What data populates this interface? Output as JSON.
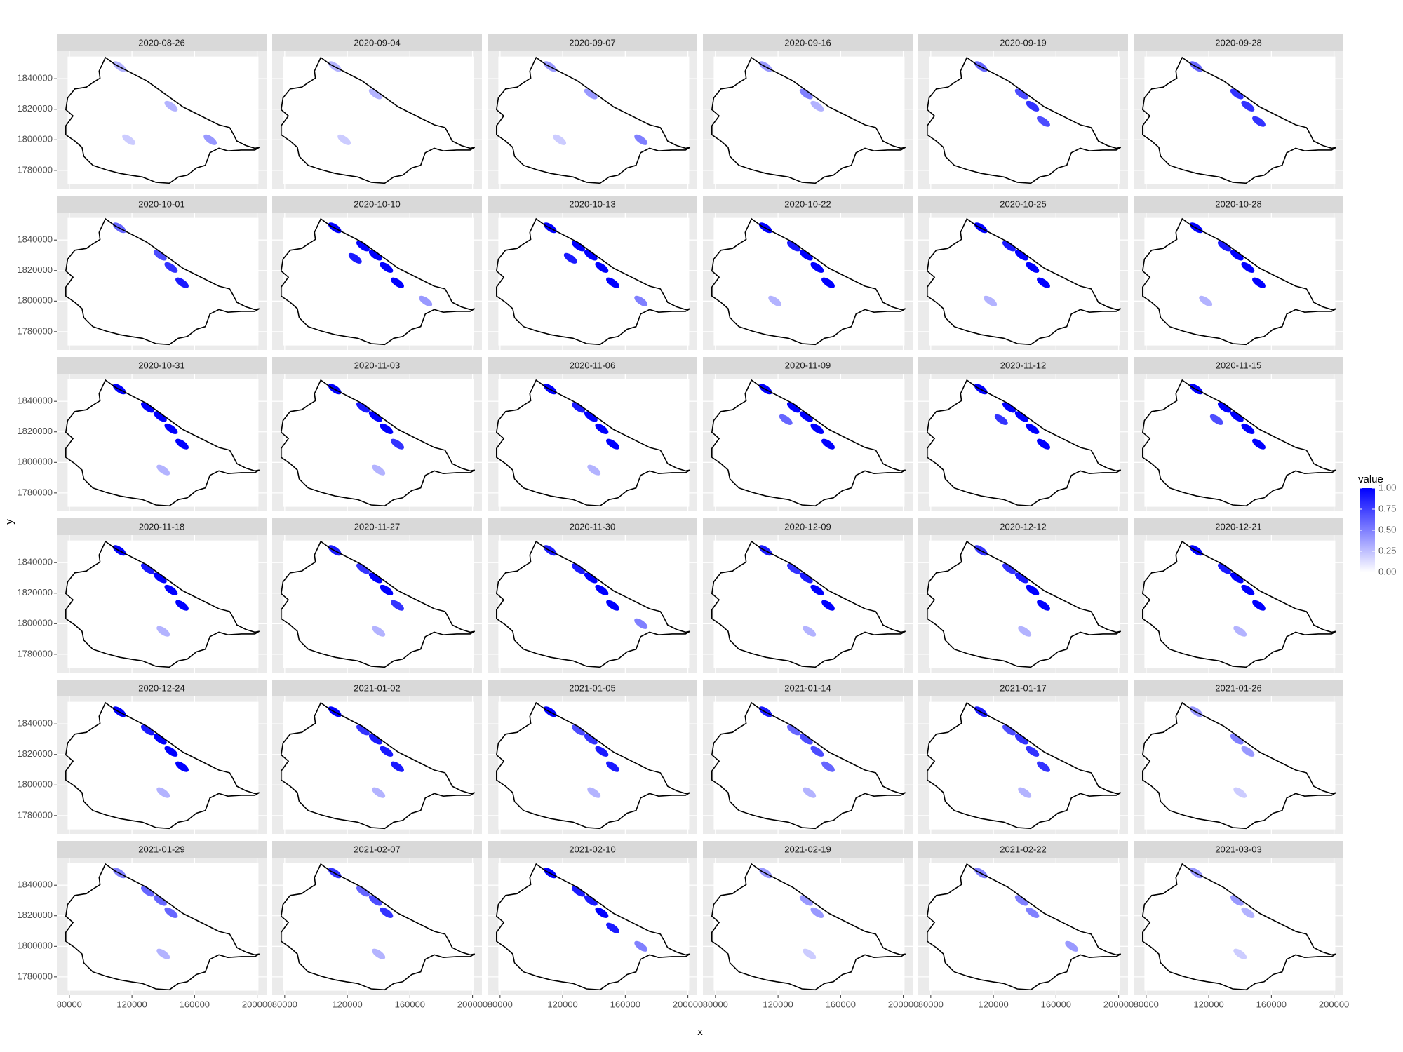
{
  "chart_data": {
    "type": "faceted-raster-map",
    "x_label": "x",
    "y_label": "y",
    "legend_title": "value",
    "xlim": [
      72000,
      206000
    ],
    "ylim": [
      1768000,
      1858000
    ],
    "xticks": [
      80000,
      120000,
      160000,
      200000
    ],
    "yticks": [
      1780000,
      1800000,
      1820000,
      1840000
    ],
    "clim": [
      0,
      1
    ],
    "cticks": [
      {
        "value": 0,
        "label": "0.00"
      },
      {
        "value": 0.25,
        "label": "0.25"
      },
      {
        "value": 0.5,
        "label": "0.50"
      },
      {
        "value": 0.75,
        "label": "0.75"
      },
      {
        "value": 1,
        "label": "1.00"
      }
    ],
    "colorscale": [
      "#ffffff",
      "#0000ff"
    ],
    "grid": true,
    "facets": [
      {
        "label": "2020-08-26",
        "x": [
          112000,
          145000,
          170000,
          118000
        ],
        "y": [
          1848000,
          1822000,
          1800000,
          1800000
        ],
        "value": [
          0.3,
          0.3,
          0.4,
          0.2
        ]
      },
      {
        "label": "2020-09-04",
        "x": [
          112000,
          138000,
          118000
        ],
        "y": [
          1848000,
          1830000,
          1800000
        ],
        "value": [
          0.3,
          0.3,
          0.2
        ]
      },
      {
        "label": "2020-09-07",
        "x": [
          112000,
          138000,
          170000,
          118000
        ],
        "y": [
          1848000,
          1830000,
          1800000,
          1800000
        ],
        "value": [
          0.4,
          0.4,
          0.5,
          0.2
        ]
      },
      {
        "label": "2020-09-16",
        "x": [
          112000,
          138000,
          145000
        ],
        "y": [
          1848000,
          1830000,
          1822000
        ],
        "value": [
          0.4,
          0.5,
          0.3
        ]
      },
      {
        "label": "2020-09-19",
        "x": [
          112000,
          138000,
          145000,
          152000
        ],
        "y": [
          1848000,
          1830000,
          1822000,
          1812000
        ],
        "value": [
          0.6,
          0.7,
          0.8,
          0.7
        ]
      },
      {
        "label": "2020-09-28",
        "x": [
          112000,
          138000,
          145000,
          152000
        ],
        "y": [
          1848000,
          1830000,
          1822000,
          1812000
        ],
        "value": [
          0.6,
          0.8,
          0.8,
          0.8
        ]
      },
      {
        "label": "2020-10-01",
        "x": [
          112000,
          138000,
          145000,
          152000
        ],
        "y": [
          1848000,
          1830000,
          1822000,
          1812000
        ],
        "value": [
          0.6,
          0.7,
          0.8,
          0.9
        ]
      },
      {
        "label": "2020-10-10",
        "x": [
          112000,
          130000,
          138000,
          145000,
          152000,
          125000,
          170000
        ],
        "y": [
          1848000,
          1836000,
          1830000,
          1822000,
          1812000,
          1828000,
          1800000
        ],
        "value": [
          1,
          1,
          1,
          1,
          1,
          0.9,
          0.4
        ]
      },
      {
        "label": "2020-10-13",
        "x": [
          112000,
          130000,
          138000,
          145000,
          152000,
          125000,
          170000
        ],
        "y": [
          1848000,
          1836000,
          1830000,
          1822000,
          1812000,
          1828000,
          1800000
        ],
        "value": [
          1,
          1,
          1,
          1,
          1,
          0.9,
          0.5
        ]
      },
      {
        "label": "2020-10-22",
        "x": [
          112000,
          130000,
          138000,
          145000,
          152000,
          118000
        ],
        "y": [
          1848000,
          1836000,
          1830000,
          1822000,
          1812000,
          1800000
        ],
        "value": [
          1,
          0.9,
          1,
          1,
          1,
          0.3
        ]
      },
      {
        "label": "2020-10-25",
        "x": [
          112000,
          130000,
          138000,
          145000,
          152000,
          118000
        ],
        "y": [
          1848000,
          1836000,
          1830000,
          1822000,
          1812000,
          1800000
        ],
        "value": [
          1,
          0.9,
          1,
          1,
          1,
          0.3
        ]
      },
      {
        "label": "2020-10-28",
        "x": [
          112000,
          130000,
          138000,
          145000,
          152000,
          118000
        ],
        "y": [
          1848000,
          1836000,
          1830000,
          1822000,
          1812000,
          1800000
        ],
        "value": [
          1,
          0.9,
          1,
          1,
          1,
          0.3
        ]
      },
      {
        "label": "2020-10-31",
        "x": [
          112000,
          130000,
          138000,
          145000,
          152000,
          140000
        ],
        "y": [
          1848000,
          1836000,
          1830000,
          1822000,
          1812000,
          1795000
        ],
        "value": [
          1,
          1,
          1,
          1,
          1,
          0.3
        ]
      },
      {
        "label": "2020-11-03",
        "x": [
          112000,
          130000,
          138000,
          145000,
          152000,
          140000
        ],
        "y": [
          1848000,
          1836000,
          1830000,
          1822000,
          1812000,
          1795000
        ],
        "value": [
          1,
          0.9,
          1,
          1,
          0.8,
          0.3
        ]
      },
      {
        "label": "2020-11-06",
        "x": [
          112000,
          130000,
          138000,
          145000,
          152000,
          140000
        ],
        "y": [
          1848000,
          1836000,
          1830000,
          1822000,
          1812000,
          1795000
        ],
        "value": [
          1,
          0.9,
          1,
          1,
          1,
          0.3
        ]
      },
      {
        "label": "2020-11-09",
        "x": [
          112000,
          130000,
          138000,
          145000,
          152000,
          125000
        ],
        "y": [
          1848000,
          1836000,
          1830000,
          1822000,
          1812000,
          1828000
        ],
        "value": [
          1,
          1,
          1,
          1,
          1,
          0.6
        ]
      },
      {
        "label": "2020-11-12",
        "x": [
          112000,
          130000,
          138000,
          145000,
          152000,
          125000
        ],
        "y": [
          1848000,
          1836000,
          1830000,
          1822000,
          1812000,
          1828000
        ],
        "value": [
          1,
          1,
          1,
          1,
          1,
          0.8
        ]
      },
      {
        "label": "2020-11-15",
        "x": [
          112000,
          130000,
          138000,
          145000,
          152000,
          125000
        ],
        "y": [
          1848000,
          1836000,
          1830000,
          1822000,
          1812000,
          1828000
        ],
        "value": [
          1,
          1,
          1,
          1,
          1,
          0.7
        ]
      },
      {
        "label": "2020-11-18",
        "x": [
          112000,
          130000,
          138000,
          145000,
          152000,
          140000
        ],
        "y": [
          1848000,
          1836000,
          1830000,
          1822000,
          1812000,
          1795000
        ],
        "value": [
          1,
          0.9,
          1,
          1,
          1,
          0.3
        ]
      },
      {
        "label": "2020-11-27",
        "x": [
          112000,
          130000,
          138000,
          145000,
          152000,
          140000
        ],
        "y": [
          1848000,
          1836000,
          1830000,
          1822000,
          1812000,
          1795000
        ],
        "value": [
          0.9,
          0.8,
          1,
          1,
          0.8,
          0.3
        ]
      },
      {
        "label": "2020-11-30",
        "x": [
          112000,
          130000,
          138000,
          145000,
          152000,
          170000
        ],
        "y": [
          1848000,
          1836000,
          1830000,
          1822000,
          1812000,
          1800000
        ],
        "value": [
          0.9,
          0.9,
          1,
          1,
          1,
          0.5
        ]
      },
      {
        "label": "2020-12-09",
        "x": [
          112000,
          130000,
          138000,
          145000,
          152000,
          140000
        ],
        "y": [
          1848000,
          1836000,
          1830000,
          1822000,
          1812000,
          1795000
        ],
        "value": [
          0.9,
          0.8,
          0.9,
          1,
          1,
          0.3
        ]
      },
      {
        "label": "2020-12-12",
        "x": [
          112000,
          130000,
          138000,
          145000,
          152000,
          140000
        ],
        "y": [
          1848000,
          1836000,
          1830000,
          1822000,
          1812000,
          1795000
        ],
        "value": [
          0.8,
          0.8,
          0.9,
          1,
          1,
          0.3
        ]
      },
      {
        "label": "2020-12-21",
        "x": [
          112000,
          130000,
          138000,
          145000,
          152000,
          140000
        ],
        "y": [
          1848000,
          1836000,
          1830000,
          1822000,
          1812000,
          1795000
        ],
        "value": [
          1,
          0.9,
          1,
          1,
          1,
          0.3
        ]
      },
      {
        "label": "2020-12-24",
        "x": [
          112000,
          130000,
          138000,
          145000,
          152000,
          140000
        ],
        "y": [
          1848000,
          1836000,
          1830000,
          1822000,
          1812000,
          1795000
        ],
        "value": [
          1,
          0.9,
          1,
          1,
          1,
          0.3
        ]
      },
      {
        "label": "2021-01-02",
        "x": [
          112000,
          130000,
          138000,
          145000,
          152000,
          140000
        ],
        "y": [
          1848000,
          1836000,
          1830000,
          1822000,
          1812000,
          1795000
        ],
        "value": [
          1,
          0.8,
          0.9,
          0.9,
          0.9,
          0.3
        ]
      },
      {
        "label": "2021-01-05",
        "x": [
          112000,
          130000,
          138000,
          145000,
          152000,
          140000
        ],
        "y": [
          1848000,
          1836000,
          1830000,
          1822000,
          1812000,
          1795000
        ],
        "value": [
          1,
          0.7,
          0.8,
          0.9,
          0.9,
          0.3
        ]
      },
      {
        "label": "2021-01-14",
        "x": [
          112000,
          130000,
          138000,
          145000,
          152000,
          140000
        ],
        "y": [
          1848000,
          1836000,
          1830000,
          1822000,
          1812000,
          1795000
        ],
        "value": [
          0.9,
          0.6,
          0.7,
          0.7,
          0.6,
          0.3
        ]
      },
      {
        "label": "2021-01-17",
        "x": [
          112000,
          130000,
          138000,
          145000,
          152000,
          140000
        ],
        "y": [
          1848000,
          1836000,
          1830000,
          1822000,
          1812000,
          1795000
        ],
        "value": [
          0.9,
          0.7,
          0.8,
          0.8,
          0.8,
          0.3
        ]
      },
      {
        "label": "2021-01-26",
        "x": [
          112000,
          138000,
          145000,
          140000
        ],
        "y": [
          1848000,
          1830000,
          1822000,
          1795000
        ],
        "value": [
          0.4,
          0.5,
          0.4,
          0.2
        ]
      },
      {
        "label": "2021-01-29",
        "x": [
          112000,
          130000,
          138000,
          145000,
          140000
        ],
        "y": [
          1848000,
          1836000,
          1830000,
          1822000,
          1795000
        ],
        "value": [
          0.5,
          0.6,
          0.6,
          0.6,
          0.3
        ]
      },
      {
        "label": "2021-02-07",
        "x": [
          112000,
          130000,
          138000,
          145000,
          140000
        ],
        "y": [
          1848000,
          1836000,
          1830000,
          1822000,
          1795000
        ],
        "value": [
          0.8,
          0.6,
          0.7,
          0.8,
          0.3
        ]
      },
      {
        "label": "2021-02-10",
        "x": [
          112000,
          130000,
          138000,
          145000,
          152000,
          170000
        ],
        "y": [
          1848000,
          1836000,
          1830000,
          1822000,
          1812000,
          1800000
        ],
        "value": [
          1,
          0.9,
          0.9,
          1,
          0.9,
          0.5
        ]
      },
      {
        "label": "2021-02-19",
        "x": [
          112000,
          138000,
          145000,
          140000
        ],
        "y": [
          1848000,
          1830000,
          1822000,
          1795000
        ],
        "value": [
          0.4,
          0.4,
          0.4,
          0.2
        ]
      },
      {
        "label": "2021-02-22",
        "x": [
          112000,
          138000,
          145000,
          170000
        ],
        "y": [
          1848000,
          1830000,
          1822000,
          1800000
        ],
        "value": [
          0.5,
          0.5,
          0.5,
          0.4
        ]
      },
      {
        "label": "2021-03-03",
        "x": [
          112000,
          138000,
          145000,
          140000
        ],
        "y": [
          1848000,
          1830000,
          1822000,
          1795000
        ],
        "value": [
          0.4,
          0.4,
          0.3,
          0.2
        ]
      }
    ]
  }
}
